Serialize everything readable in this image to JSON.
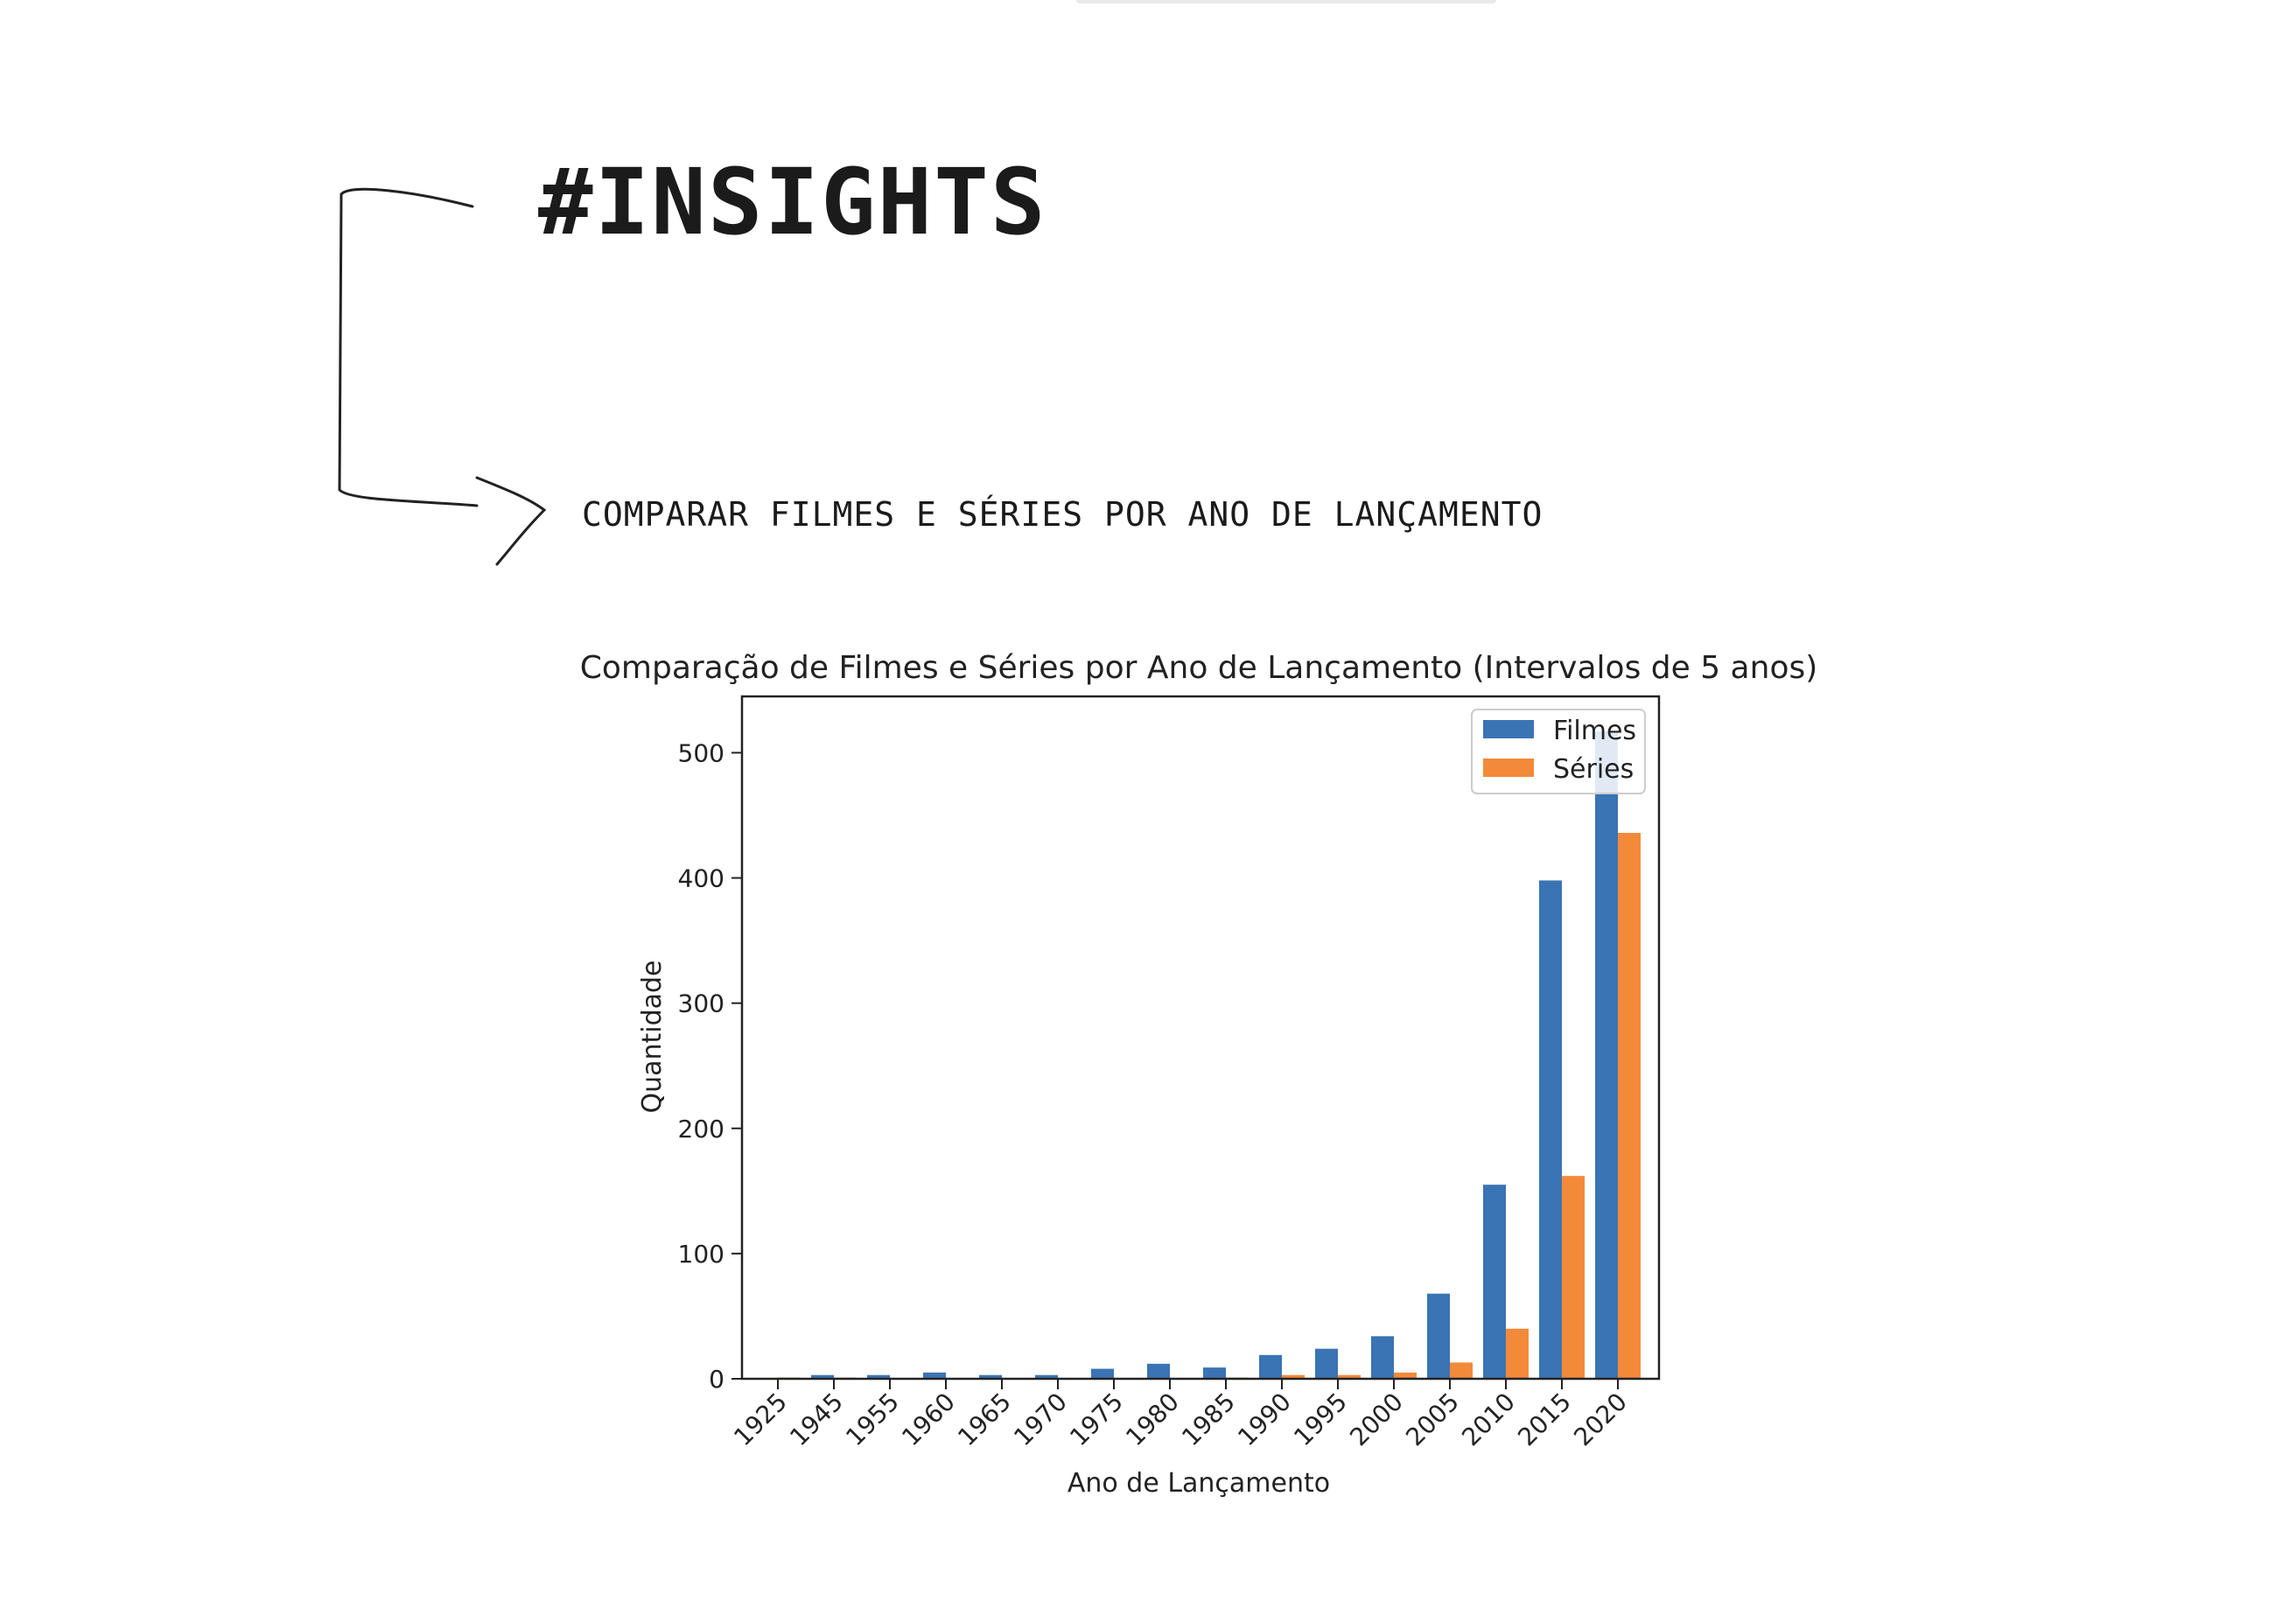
{
  "header": {
    "title": "#INSIGHTS",
    "subtitle": "COMPARAR FILMES E SÉRIES POR ANO DE LANÇAMENTO"
  },
  "chart_data": {
    "type": "bar",
    "title": "Comparação de Filmes e Séries por Ano de Lançamento (Intervalos de 5 anos)",
    "xlabel": "Ano de Lançamento",
    "ylabel": "Quantidade",
    "categories": [
      "1925",
      "1945",
      "1955",
      "1960",
      "1965",
      "1970",
      "1975",
      "1980",
      "1985",
      "1990",
      "1995",
      "2000",
      "2005",
      "2010",
      "2015",
      "2020"
    ],
    "series": [
      {
        "name": "Filmes",
        "color": "#3a74b4",
        "values": [
          0,
          3,
          3,
          5,
          3,
          3,
          8,
          12,
          9,
          19,
          24,
          34,
          68,
          155,
          398,
          517
        ]
      },
      {
        "name": "Séries",
        "color": "#f28a3a",
        "values": [
          1,
          1,
          0,
          0,
          0,
          0,
          0,
          0,
          1,
          3,
          3,
          5,
          13,
          40,
          162,
          436
        ]
      }
    ],
    "yticks": [
      0,
      100,
      200,
      300,
      400,
      500
    ],
    "ylim": [
      0,
      545
    ],
    "legend": "top-right",
    "grid": false
  }
}
